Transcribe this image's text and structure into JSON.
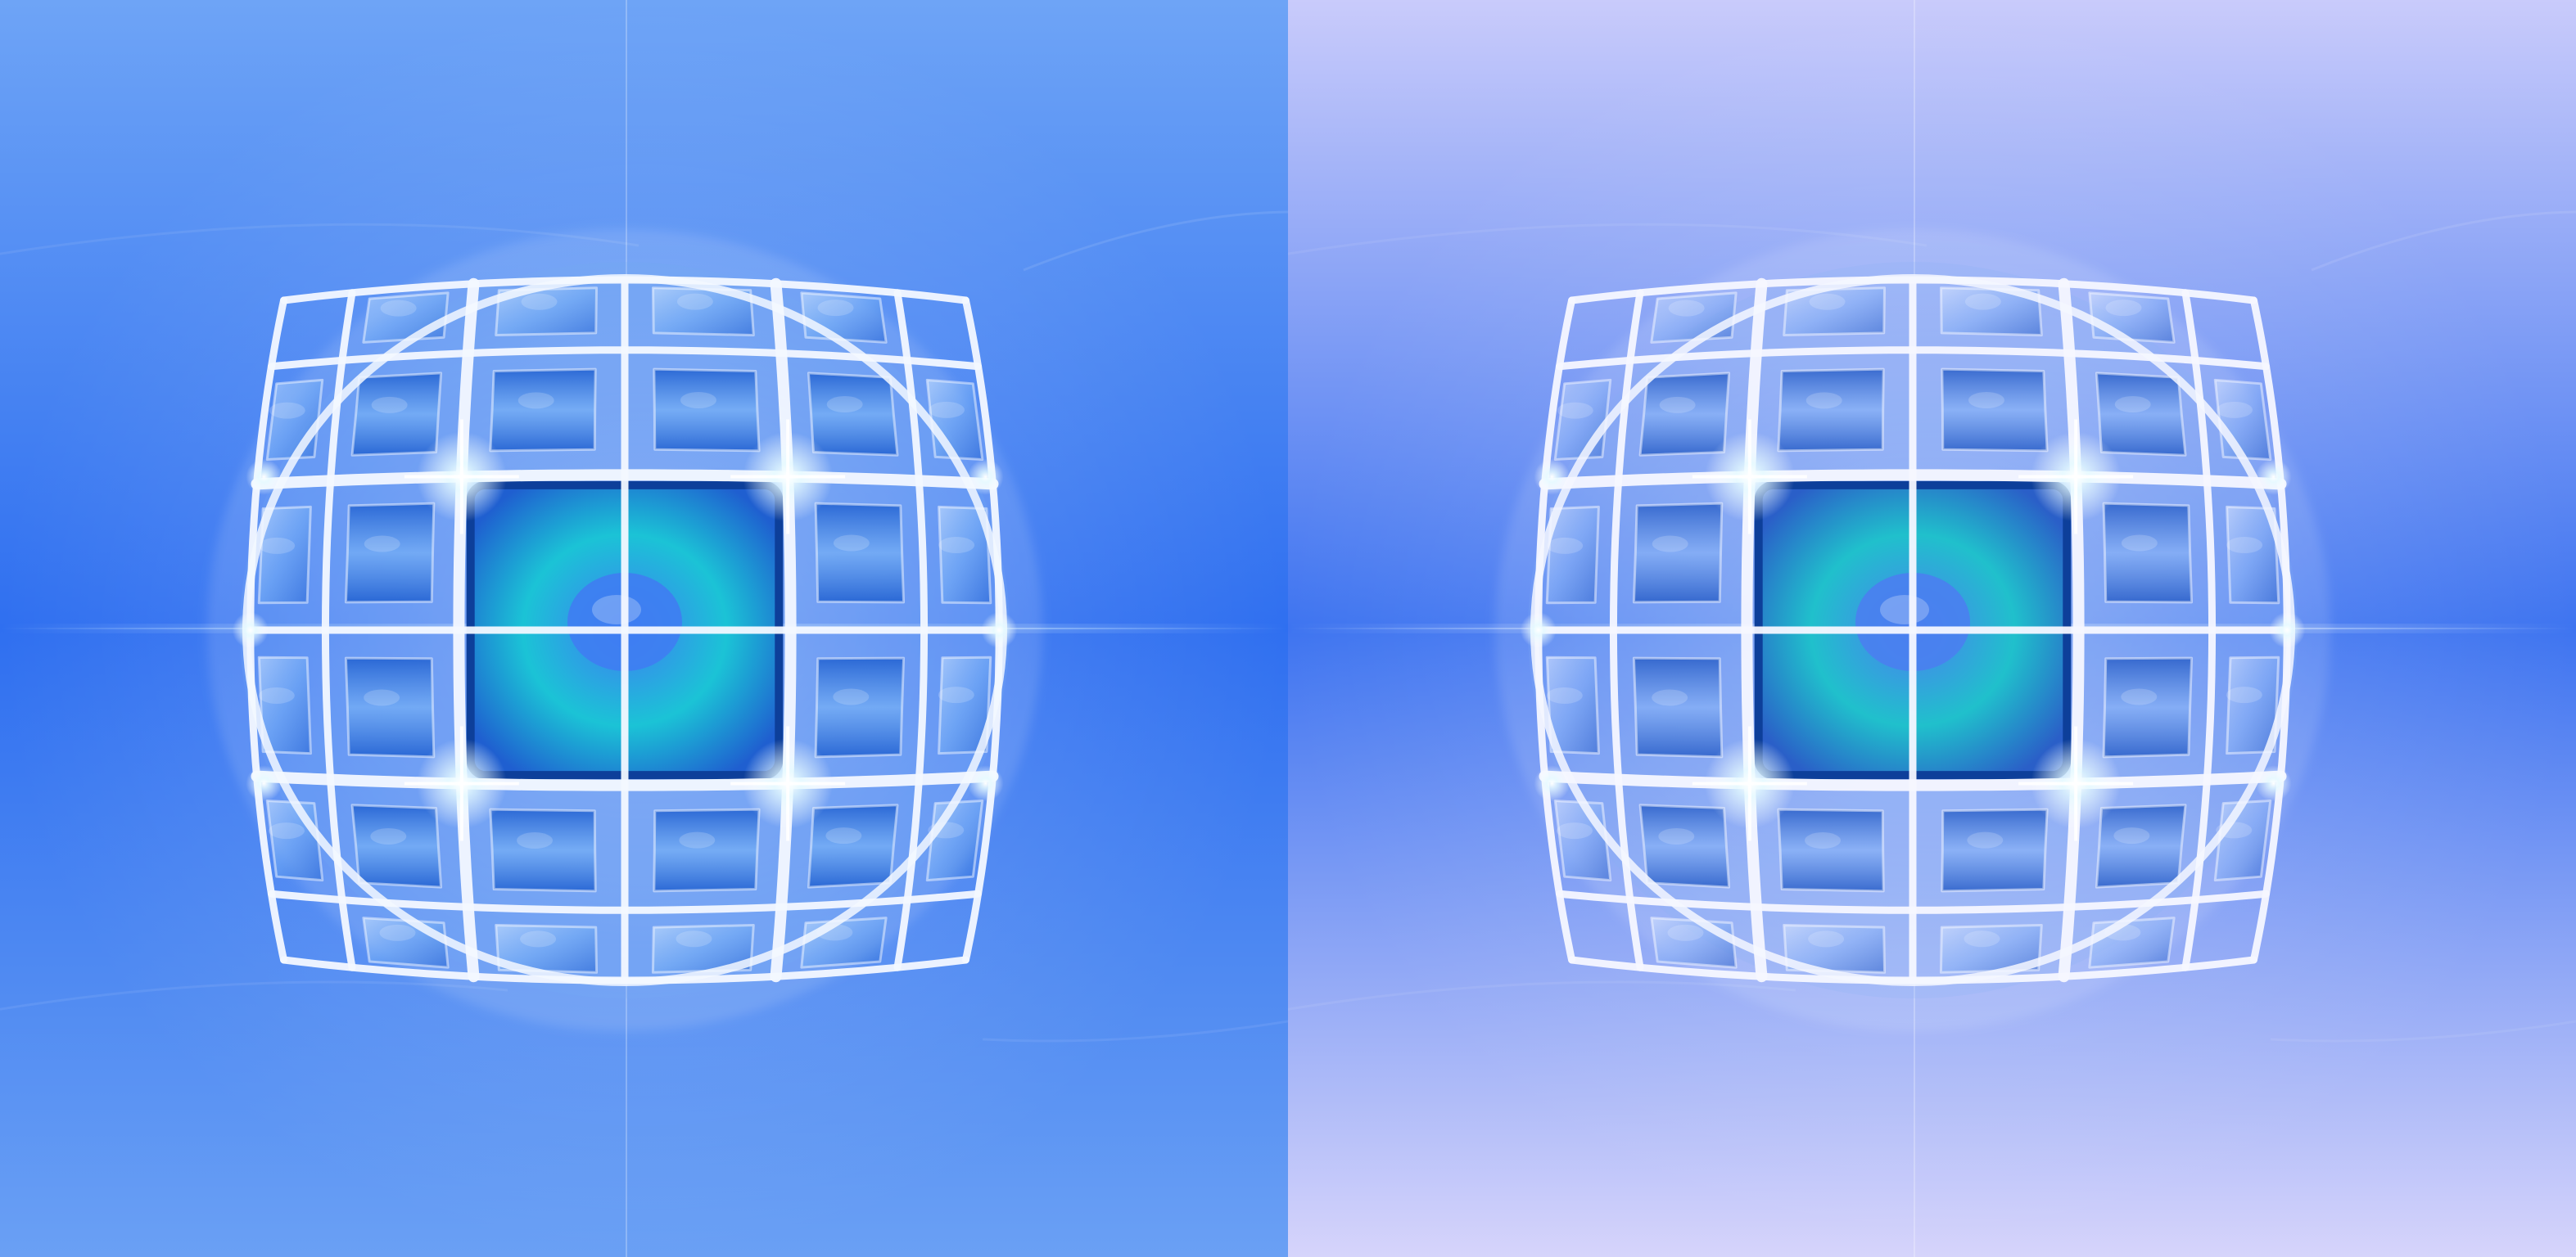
{
  "image": {
    "panels": [
      {
        "id": "left",
        "subject": "glass-lattice-sphere",
        "colors": {
          "bg_top": "#6ea4f6",
          "bg_mid": "#2f6ff0",
          "bg_bottom": "#6aa0f4",
          "flare": "#d8f2ff",
          "frame": "#f3f8ff",
          "cell_light": "#cfe6ff",
          "cell_mid": "#74aef5",
          "cell_dark": "#1f5fd0",
          "core_outer": "#1bc3d6",
          "core_inner": "#3f7df2"
        }
      },
      {
        "id": "right",
        "subject": "glass-lattice-sphere",
        "colors": {
          "bg_top": "#c9cbfb",
          "bg_mid": "#3e74f0",
          "bg_bottom": "#d6d4fb",
          "flare": "#e6f4ff",
          "frame": "#f5f7ff",
          "cell_light": "#dbe7ff",
          "cell_mid": "#86b0f6",
          "cell_dark": "#2a5fc8",
          "core_outer": "#20c0cc",
          "core_inner": "#4a80f0"
        }
      }
    ]
  }
}
